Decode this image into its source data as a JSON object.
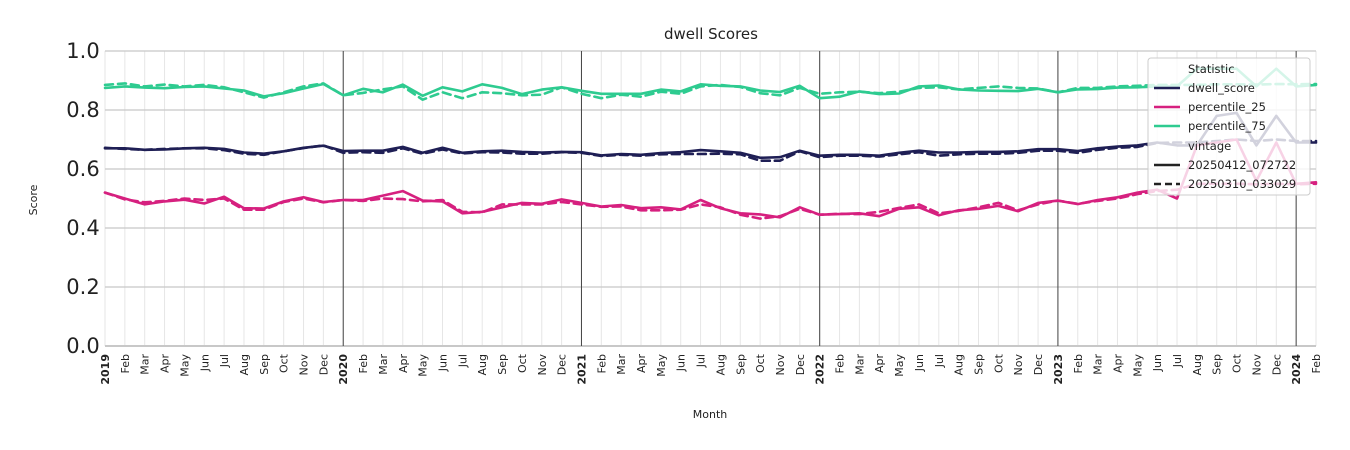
{
  "chart_data": {
    "type": "line",
    "title": "dwell Scores",
    "xlabel": "Month",
    "ylabel": "Score",
    "ylim": [
      0.0,
      1.0
    ],
    "yticks": [
      "0.0",
      "0.2",
      "0.4",
      "0.6",
      "0.8",
      "1.0"
    ],
    "grid": true,
    "legend_position": "top-right",
    "x_start": "2019-01",
    "x_ticks": [
      "2019",
      "Feb",
      "Mar",
      "Apr",
      "May",
      "Jun",
      "Jul",
      "Aug",
      "Sep",
      "Oct",
      "Nov",
      "Dec",
      "2020",
      "Feb",
      "Mar",
      "Apr",
      "May",
      "Jun",
      "Jul",
      "Aug",
      "Sep",
      "Oct",
      "Nov",
      "Dec",
      "2021",
      "Feb",
      "Mar",
      "Apr",
      "May",
      "Jun",
      "Jul",
      "Aug",
      "Sep",
      "Oct",
      "Nov",
      "Dec",
      "2022",
      "Feb",
      "Mar",
      "Apr",
      "May",
      "Jun",
      "Jul",
      "Aug",
      "Sep",
      "Oct",
      "Nov",
      "Dec",
      "2023",
      "Feb",
      "Mar",
      "Apr",
      "May",
      "Jun",
      "Jul",
      "Aug",
      "Sep",
      "Oct",
      "Nov",
      "Dec",
      "2024",
      "Feb"
    ],
    "legend": {
      "title": "Statistic",
      "items": [
        "dwell_score",
        "percentile_25",
        "percentile_75"
      ],
      "vintage_title": "vintage",
      "vintage_items": [
        "20250412_072722",
        "20250310_033029"
      ]
    },
    "colors": {
      "dwell_score": "#1f1f55",
      "percentile_25": "#d6207f",
      "percentile_75": "#2ecb90"
    },
    "series": [
      {
        "name": "dwell_score",
        "vintage": "20250412_072722",
        "values": [
          0.67,
          0.67,
          0.665,
          0.666,
          0.67,
          0.672,
          0.668,
          0.656,
          0.652,
          0.66,
          0.672,
          0.679,
          0.661,
          0.662,
          0.662,
          0.675,
          0.655,
          0.672,
          0.655,
          0.66,
          0.662,
          0.658,
          0.656,
          0.658,
          0.657,
          0.646,
          0.651,
          0.648,
          0.654,
          0.657,
          0.664,
          0.66,
          0.655,
          0.638,
          0.64,
          0.662,
          0.645,
          0.648,
          0.648,
          0.645,
          0.655,
          0.662,
          0.656,
          0.656,
          0.658,
          0.658,
          0.66,
          0.667,
          0.667,
          0.661,
          0.67,
          0.676,
          0.68,
          0.69,
          0.68,
          0.68,
          0.78,
          0.79,
          0.68,
          0.78,
          0.69,
          0.69
        ]
      },
      {
        "name": "dwell_score",
        "vintage": "20250310_033029",
        "values": [
          0.672,
          0.668,
          0.665,
          0.668,
          0.67,
          0.67,
          0.664,
          0.652,
          0.648,
          0.66,
          0.671,
          0.68,
          0.655,
          0.657,
          0.655,
          0.67,
          0.652,
          0.666,
          0.653,
          0.657,
          0.656,
          0.652,
          0.652,
          0.657,
          0.655,
          0.644,
          0.648,
          0.645,
          0.65,
          0.651,
          0.651,
          0.652,
          0.65,
          0.628,
          0.628,
          0.66,
          0.64,
          0.645,
          0.645,
          0.642,
          0.65,
          0.657,
          0.645,
          0.65,
          0.652,
          0.652,
          0.655,
          0.662,
          0.662,
          0.655,
          0.665,
          0.672,
          0.675,
          0.688,
          0.69,
          0.69,
          0.695,
          0.7,
          0.695,
          0.7,
          0.695,
          0.695
        ]
      },
      {
        "name": "percentile_25",
        "vintage": "20250412_072722",
        "values": [
          0.52,
          0.5,
          0.48,
          0.49,
          0.496,
          0.483,
          0.506,
          0.467,
          0.466,
          0.49,
          0.504,
          0.488,
          0.495,
          0.495,
          0.51,
          0.525,
          0.493,
          0.49,
          0.45,
          0.455,
          0.47,
          0.485,
          0.482,
          0.497,
          0.485,
          0.473,
          0.478,
          0.467,
          0.47,
          0.463,
          0.495,
          0.467,
          0.45,
          0.446,
          0.436,
          0.47,
          0.445,
          0.447,
          0.45,
          0.44,
          0.465,
          0.47,
          0.443,
          0.46,
          0.465,
          0.475,
          0.457,
          0.485,
          0.493,
          0.481,
          0.495,
          0.504,
          0.52,
          0.53,
          0.5,
          0.68,
          0.69,
          0.7,
          0.56,
          0.69,
          0.55,
          0.555
        ]
      },
      {
        "name": "percentile_25",
        "vintage": "20250310_033029",
        "values": [
          0.52,
          0.497,
          0.487,
          0.492,
          0.5,
          0.495,
          0.5,
          0.462,
          0.462,
          0.488,
          0.5,
          0.487,
          0.495,
          0.492,
          0.5,
          0.498,
          0.49,
          0.495,
          0.455,
          0.453,
          0.48,
          0.48,
          0.48,
          0.488,
          0.48,
          0.472,
          0.473,
          0.46,
          0.46,
          0.462,
          0.48,
          0.47,
          0.445,
          0.432,
          0.44,
          0.465,
          0.445,
          0.448,
          0.447,
          0.455,
          0.468,
          0.48,
          0.45,
          0.458,
          0.47,
          0.485,
          0.46,
          0.48,
          0.493,
          0.482,
          0.492,
          0.5,
          0.515,
          0.525,
          0.53,
          0.55,
          0.55,
          0.55,
          0.548,
          0.55,
          0.548,
          0.55
        ]
      },
      {
        "name": "percentile_75",
        "vintage": "20250412_072722",
        "values": [
          0.875,
          0.88,
          0.876,
          0.874,
          0.878,
          0.88,
          0.873,
          0.866,
          0.846,
          0.857,
          0.873,
          0.888,
          0.85,
          0.872,
          0.86,
          0.886,
          0.848,
          0.877,
          0.863,
          0.887,
          0.875,
          0.854,
          0.869,
          0.877,
          0.865,
          0.855,
          0.855,
          0.855,
          0.869,
          0.863,
          0.887,
          0.882,
          0.88,
          0.866,
          0.861,
          0.882,
          0.84,
          0.845,
          0.863,
          0.854,
          0.856,
          0.88,
          0.883,
          0.87,
          0.866,
          0.865,
          0.864,
          0.872,
          0.86,
          0.87,
          0.871,
          0.876,
          0.877,
          0.88,
          0.88,
          0.94,
          0.94,
          0.94,
          0.88,
          0.94,
          0.88,
          0.885
        ]
      },
      {
        "name": "percentile_75",
        "vintage": "20250310_033029",
        "values": [
          0.885,
          0.89,
          0.88,
          0.886,
          0.88,
          0.885,
          0.877,
          0.86,
          0.842,
          0.86,
          0.88,
          0.89,
          0.85,
          0.858,
          0.87,
          0.88,
          0.835,
          0.86,
          0.84,
          0.86,
          0.857,
          0.85,
          0.852,
          0.877,
          0.855,
          0.84,
          0.852,
          0.845,
          0.862,
          0.855,
          0.88,
          0.885,
          0.878,
          0.857,
          0.85,
          0.875,
          0.855,
          0.86,
          0.862,
          0.857,
          0.862,
          0.875,
          0.877,
          0.87,
          0.875,
          0.88,
          0.875,
          0.873,
          0.86,
          0.875,
          0.875,
          0.88,
          0.882,
          0.885,
          0.885,
          0.885,
          0.887,
          0.887,
          0.886,
          0.888,
          0.887,
          0.888
        ]
      }
    ]
  }
}
